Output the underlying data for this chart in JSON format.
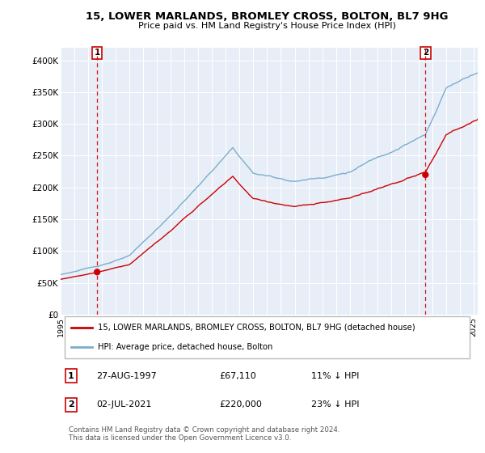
{
  "title": "15, LOWER MARLANDS, BROMLEY CROSS, BOLTON, BL7 9HG",
  "subtitle": "Price paid vs. HM Land Registry's House Price Index (HPI)",
  "legend_line1": "15, LOWER MARLANDS, BROMLEY CROSS, BOLTON, BL7 9HG (detached house)",
  "legend_line2": "HPI: Average price, detached house, Bolton",
  "annotation1_label": "1",
  "annotation1_date": "27-AUG-1997",
  "annotation1_price": "£67,110",
  "annotation1_hpi": "11% ↓ HPI",
  "annotation1_year": 1997.65,
  "annotation1_value": 67110,
  "annotation2_label": "2",
  "annotation2_date": "02-JUL-2021",
  "annotation2_price": "£220,000",
  "annotation2_hpi": "23% ↓ HPI",
  "annotation2_year": 2021.5,
  "annotation2_value": 220000,
  "footer": "Contains HM Land Registry data © Crown copyright and database right 2024.\nThis data is licensed under the Open Government Licence v3.0.",
  "ylim": [
    0,
    420000
  ],
  "xlim_start": 1995.0,
  "xlim_end": 2025.3,
  "red_color": "#cc0000",
  "blue_color": "#7aadcc",
  "bg_color": "#e8eef8",
  "plot_bg": "#e8eef8",
  "grid_color": "#ffffff",
  "yticks": [
    0,
    50000,
    100000,
    150000,
    200000,
    250000,
    300000,
    350000,
    400000
  ],
  "ytick_labels": [
    "£0",
    "£50K",
    "£100K",
    "£150K",
    "£200K",
    "£250K",
    "£300K",
    "£350K",
    "£400K"
  ]
}
